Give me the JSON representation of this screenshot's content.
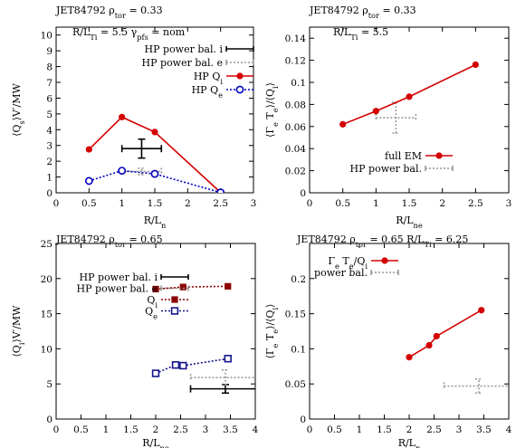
{
  "colors": {
    "red": "#d40000",
    "blue": "#0000c0",
    "darkred": "#8b0000",
    "navy": "#14148c",
    "black": "#000000",
    "gray": "#999999"
  },
  "chart_data": [
    {
      "type": "line",
      "title": "JET84792 ρ_tor = 0.33",
      "annotation": "R/L_Ti = 5.5  γ_pfs = nom",
      "xlabel": "R/L_n",
      "ylabel": "⟨Q_s⟩V′/MW",
      "xlim": [
        0,
        3
      ],
      "ylim": [
        0,
        10.5
      ],
      "xticks": [
        "0",
        "0.5",
        "1",
        "1.5",
        "2",
        "2.5",
        "3"
      ],
      "yticks": [
        "0",
        "1",
        "2",
        "3",
        "4",
        "5",
        "6",
        "7",
        "8",
        "9",
        "10"
      ],
      "legend": [
        "HP power bal. i",
        "HP power bal. e",
        "HP Q_i",
        "HP Q_e"
      ],
      "series": [
        {
          "name": "HP Q_i",
          "x": [
            0.5,
            1.0,
            1.5,
            2.5
          ],
          "y": [
            2.75,
            4.8,
            3.85,
            0.02
          ]
        },
        {
          "name": "HP Q_e",
          "x": [
            0.5,
            1.0,
            1.5,
            2.5
          ],
          "y": [
            0.75,
            1.4,
            1.2,
            0.02
          ]
        }
      ],
      "error_bars": [
        {
          "name": "HP power bal. i",
          "x": 1.3,
          "y": 2.8,
          "xerr": 0.3,
          "yerr": 0.6
        },
        {
          "name": "HP power bal. e",
          "x": 1.3,
          "y": 1.35,
          "xerr": 0.3,
          "yerr": 0.2
        }
      ]
    },
    {
      "type": "line",
      "title": "JET84792 ρ_tor = 0.33",
      "annotation": "R/L_Ti = 5.5",
      "xlabel": "R/L_ne",
      "ylabel": "⟨Γ_e T_e⟩/⟨Q_i⟩",
      "xlim": [
        0,
        3
      ],
      "ylim": [
        0,
        0.15
      ],
      "xticks": [
        "0",
        "0.5",
        "1",
        "1.5",
        "2",
        "2.5",
        "3"
      ],
      "yticks": [
        "0",
        "0.02",
        "0.04",
        "0.06",
        "0.08",
        "0.1",
        "0.12",
        "0.14"
      ],
      "legend": [
        "full EM",
        "HP power bal."
      ],
      "series": [
        {
          "name": "full EM",
          "x": [
            0.5,
            1.0,
            1.5,
            2.5
          ],
          "y": [
            0.062,
            0.074,
            0.087,
            0.116
          ]
        }
      ],
      "error_bars": [
        {
          "name": "HP power bal.",
          "x": 1.3,
          "y": 0.068,
          "xerr": 0.3,
          "yerr": 0.014
        }
      ]
    },
    {
      "type": "line",
      "title": "JET84792 ρ_tor = 0.65",
      "xlabel": "R/L_ne",
      "ylabel": "⟨Q_i⟩V′/MW",
      "xlim": [
        0,
        4
      ],
      "ylim": [
        0,
        25
      ],
      "xticks": [
        "0",
        "0.5",
        "1",
        "1.5",
        "2",
        "2.5",
        "3",
        "3.5",
        "4"
      ],
      "yticks": [
        "0",
        "5",
        "10",
        "15",
        "20",
        "25"
      ],
      "legend": [
        "HP power bal. i",
        "HP power bal. e",
        "Q_i",
        "Q_e"
      ],
      "series": [
        {
          "name": "Q_i",
          "x": [
            2.0,
            2.55,
            3.45
          ],
          "y": [
            18.5,
            18.8,
            18.9
          ]
        },
        {
          "name": "Q_e",
          "x": [
            2.0,
            2.4,
            2.55,
            3.45
          ],
          "y": [
            6.5,
            7.7,
            7.6,
            8.6
          ]
        }
      ],
      "error_bars": [
        {
          "name": "HP power bal. i",
          "x": 3.4,
          "y": 4.3,
          "xerr": 0.7,
          "yerr": 0.6
        },
        {
          "name": "HP power bal. e",
          "x": 3.4,
          "y": 5.9,
          "xerr": 0.7,
          "yerr": 1.1
        }
      ]
    },
    {
      "type": "line",
      "title": "JET84792 ρ_tor = 0.65 R/L_Ti = 6.25",
      "xlabel": "R/L_n",
      "ylabel": "⟨Γ_e T_e⟩/⟨Q_i⟩",
      "xlim": [
        0,
        4
      ],
      "ylim": [
        0,
        0.25
      ],
      "xticks": [
        "0",
        "0.5",
        "1",
        "1.5",
        "2",
        "2.5",
        "3",
        "3.5",
        "4"
      ],
      "yticks": [
        "0",
        "0.05",
        "0.1",
        "0.15",
        "0.2"
      ],
      "legend": [
        "Γ_e T_e/Q_i",
        "power bal."
      ],
      "series": [
        {
          "name": "Γ_e T_e/Q_i",
          "x": [
            2.0,
            2.4,
            2.55,
            3.45
          ],
          "y": [
            0.088,
            0.105,
            0.118,
            0.155
          ]
        }
      ],
      "error_bars": [
        {
          "name": "power bal.",
          "x": 3.4,
          "y": 0.047,
          "xerr": 0.7,
          "yerr": 0.01
        }
      ]
    }
  ]
}
